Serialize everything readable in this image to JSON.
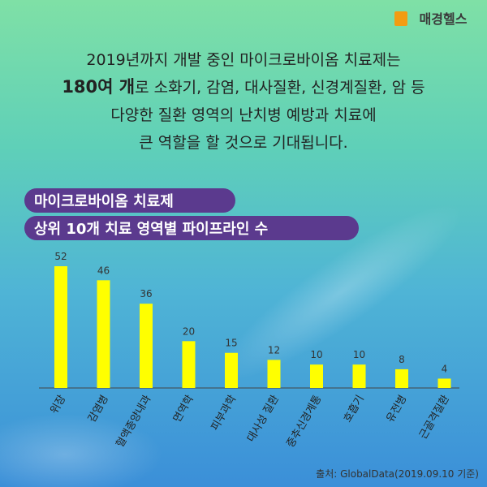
{
  "logo": "매경헬스",
  "intro": {
    "line1": "2019년까지 개발 중인 마이크로바이옴 치료제는",
    "line2_bold": "180여 개",
    "line2_rest": "로 소화기, 감염, 대사질환, 신경계질환, 암 등",
    "line3": "다양한 질환 영역의 난치병 예방과 치료에",
    "line4": "큰 역할을 할 것으로 기대됩니다."
  },
  "chart_data": {
    "type": "bar",
    "title": [
      "마이크로바이옴 치료제",
      "상위 10개 치료 영역별 파이프라인 수"
    ],
    "categories": [
      "위장",
      "감염병",
      "혈액종양내과",
      "면역학",
      "피부과학",
      "대사성 질환",
      "중추신경계통",
      "호흡기",
      "유전병",
      "근골격질환"
    ],
    "values": [
      52,
      46,
      36,
      20,
      15,
      12,
      10,
      10,
      8,
      4
    ],
    "color": "#ffff00"
  },
  "source": "출처: GlobalData(2019.09.10 기준)"
}
